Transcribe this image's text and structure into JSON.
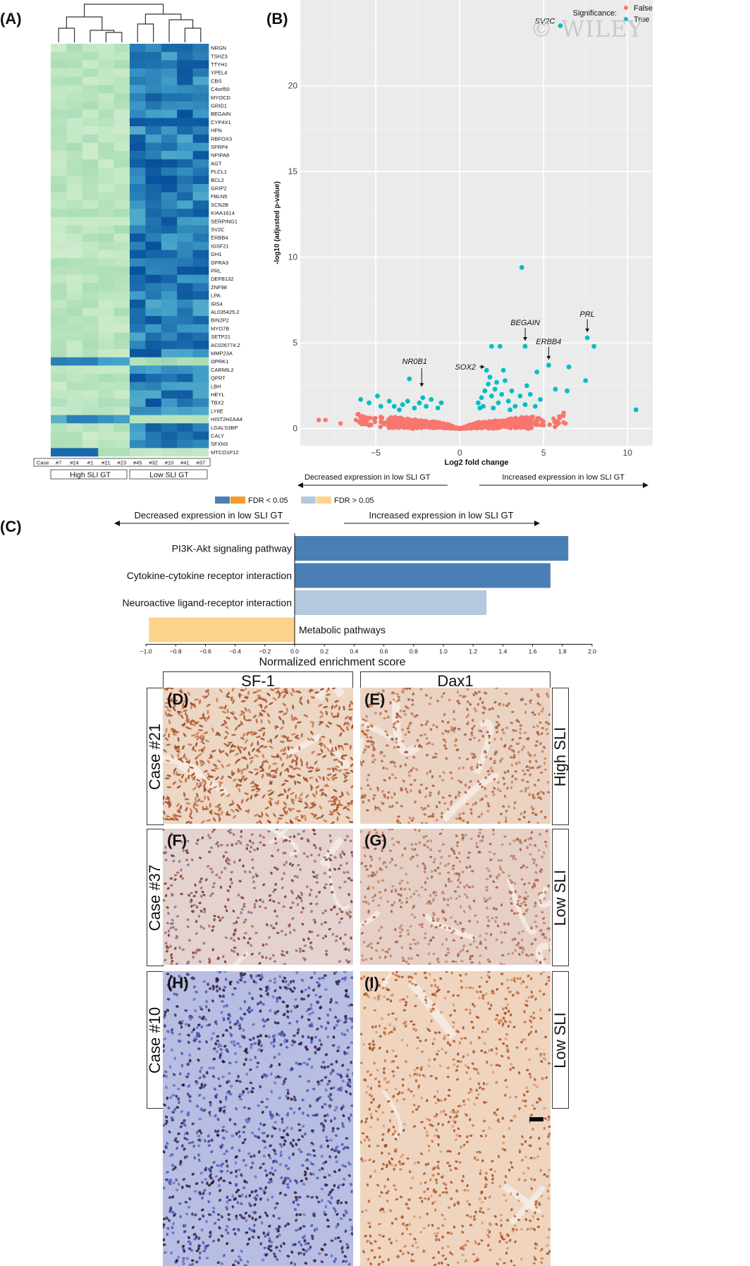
{
  "watermark": "© WILEY",
  "panels": {
    "A": "(A)",
    "B": "(B)",
    "C": "(C)",
    "D": "(D)",
    "E": "(E)",
    "F": "(F)",
    "G": "(G)",
    "H": "(H)",
    "I": "(I)"
  },
  "colors": {
    "heat_low": "#d9f0d3",
    "heat_high": "#08519c",
    "sig_false": "#f8766d",
    "sig_true": "#00bfc4",
    "fdr_sig_pos": "#4a7fb5",
    "fdr_sig_neg": "#f39b2f",
    "fdr_ns_pos": "#b4c8e0",
    "fdr_ns_neg": "#fdd28a",
    "plot_bg": "#ebebeb"
  },
  "heatmap": {
    "case_label": "Case",
    "cases": [
      "#7",
      "#24",
      "#1",
      "#21",
      "#23",
      "#45",
      "#32",
      "#10",
      "#41",
      "#37"
    ],
    "group_labels": [
      "High SLI GT",
      "Low SLI GT"
    ],
    "genes": [
      "NRGN",
      "TSHZ3",
      "TTYH1",
      "YPEL4",
      "CBS",
      "C4orf50",
      "MYOCD",
      "GRID1",
      "BEGAIN",
      "CYP4X1",
      "HPN",
      "RBFOX3",
      "SFRP4",
      "NPIPA8",
      "AGT",
      "PLCL1",
      "BCL2",
      "GRIP2",
      "FBLN5",
      "SCN2B",
      "KIAA1614",
      "SERPING1",
      "SV2C",
      "ERBB4",
      "IGSF21",
      "GH1",
      "GFRA3",
      "PRL",
      "DEFB132",
      "ZNF98",
      "LPA",
      "IRS4",
      "AL035425.2",
      "BIN2P2",
      "MYO7B",
      "SETP21",
      "AC026774.2",
      "MMP23A",
      "OPRK1",
      "CARMIL2",
      "QPRT",
      "LBH",
      "HEYL",
      "TBX2",
      "LY6E",
      "HIST2H2AA4",
      "LGALS3BP",
      "CALY",
      "SFXN3",
      "MTCO1P12"
    ]
  },
  "chart_data": [
    {
      "type": "scatter",
      "panel": "B",
      "xlabel": "Log2 fold change",
      "ylabel": "-log10 (adjusted p-value)",
      "xlim": [
        -9.5,
        11.5
      ],
      "ylim": [
        -1,
        25
      ],
      "xticks": [
        -5,
        0,
        5,
        10
      ],
      "yticks": [
        0,
        5,
        10,
        15,
        20
      ],
      "grid": true,
      "legend": {
        "title": "Significance:",
        "entries": [
          "False",
          "True"
        ],
        "position": "top-right"
      },
      "annotations": [
        {
          "label": "SV2C",
          "x": 6.0,
          "y": 23.5
        },
        {
          "label": "PRL",
          "x": 7.6,
          "y": 5.3
        },
        {
          "label": "BEGAIN",
          "x": 3.9,
          "y": 4.8
        },
        {
          "label": "ERBB4",
          "x": 5.3,
          "y": 3.7
        },
        {
          "label": "SOX2",
          "x": 1.6,
          "y": 3.6
        },
        {
          "label": "NR0B1",
          "x": -2.6,
          "y": 2.2
        }
      ],
      "significant_points": [
        [
          6.0,
          23.5
        ],
        [
          3.7,
          9.4
        ],
        [
          7.6,
          5.3
        ],
        [
          8.0,
          4.8
        ],
        [
          3.9,
          4.8
        ],
        [
          5.3,
          3.7
        ],
        [
          6.5,
          3.6
        ],
        [
          2.4,
          4.8
        ],
        [
          1.9,
          4.8
        ],
        [
          1.6,
          3.4
        ],
        [
          4.6,
          3.3
        ],
        [
          -3.0,
          2.9
        ],
        [
          7.5,
          2.8
        ],
        [
          10.5,
          1.1
        ],
        [
          5.7,
          2.3
        ],
        [
          6.4,
          2.2
        ],
        [
          -5.9,
          1.7
        ],
        [
          -5.4,
          1.5
        ],
        [
          -4.7,
          1.3
        ],
        [
          -4.9,
          1.9
        ],
        [
          -4.2,
          1.6
        ],
        [
          -3.9,
          1.3
        ],
        [
          -3.4,
          1.4
        ],
        [
          -3.1,
          1.6
        ],
        [
          -2.7,
          1.2
        ],
        [
          -2.4,
          1.5
        ],
        [
          -2.0,
          1.3
        ],
        [
          -1.7,
          1.7
        ],
        [
          -1.3,
          1.2
        ],
        [
          -2.2,
          1.8
        ],
        [
          -3.6,
          1.1
        ],
        [
          -1.1,
          1.5
        ],
        [
          1.1,
          1.5
        ],
        [
          1.3,
          1.8
        ],
        [
          1.5,
          2.2
        ],
        [
          1.7,
          2.6
        ],
        [
          1.9,
          1.9
        ],
        [
          2.1,
          2.3
        ],
        [
          2.3,
          1.5
        ],
        [
          2.5,
          2.0
        ],
        [
          2.7,
          2.8
        ],
        [
          2.9,
          1.6
        ],
        [
          3.1,
          2.2
        ],
        [
          3.3,
          1.3
        ],
        [
          3.6,
          1.9
        ],
        [
          3.9,
          1.4
        ],
        [
          4.2,
          2.0
        ],
        [
          4.5,
          1.3
        ],
        [
          4.8,
          1.7
        ],
        [
          1.2,
          1.2
        ],
        [
          1.8,
          3.0
        ],
        [
          2.2,
          2.7
        ],
        [
          2.6,
          3.4
        ],
        [
          2.0,
          1.2
        ],
        [
          3.0,
          1.1
        ],
        [
          1.4,
          1.3
        ],
        [
          4.0,
          2.5
        ]
      ],
      "arrow_labels": {
        "left": "Decreased expression in low SLI GT",
        "right": "Increased expression in low SLI GT"
      }
    },
    {
      "type": "bar",
      "panel": "C",
      "orientation": "horizontal",
      "xlabel": "Normalized enrichment score",
      "xlim": [
        -1.0,
        2.0
      ],
      "xticks": [
        "-1.0",
        "-0.8",
        "-0.6",
        "-0.4",
        "-0.2",
        "0.0",
        "0.2",
        "0.4",
        "0.6",
        "0.8",
        "1.0",
        "1.2",
        "1.4",
        "1.6",
        "1.8",
        "2.0"
      ],
      "categories": [
        "PI3K-Akt signaling pathway",
        "Cytokine-cytokine receptor interaction",
        "Neuroactive ligand-receptor interaction",
        "Metabolic pathways"
      ],
      "values": [
        1.84,
        1.72,
        1.29,
        -0.98
      ],
      "significant": [
        true,
        true,
        false,
        false
      ],
      "legend": {
        "entries": [
          "FDR < 0.05",
          "FDR > 0.05"
        ],
        "position": "top"
      },
      "arrow_labels": {
        "left": "Decreased expression in low SLI GT",
        "right": "Increased expression in low SLI GT"
      }
    }
  ],
  "ihc": {
    "columns": [
      "SF-1",
      "Dax1"
    ],
    "rows": [
      {
        "case": "Case #21",
        "group": "High SLI",
        "tags": [
          "(D)",
          "(E)"
        ]
      },
      {
        "case": "Case #37",
        "group": "Low SLI",
        "tags": [
          "(F)",
          "(G)"
        ]
      },
      {
        "case": "Case #10",
        "group": "Low SLI",
        "tags": [
          "(H)",
          "(I)"
        ]
      }
    ]
  }
}
